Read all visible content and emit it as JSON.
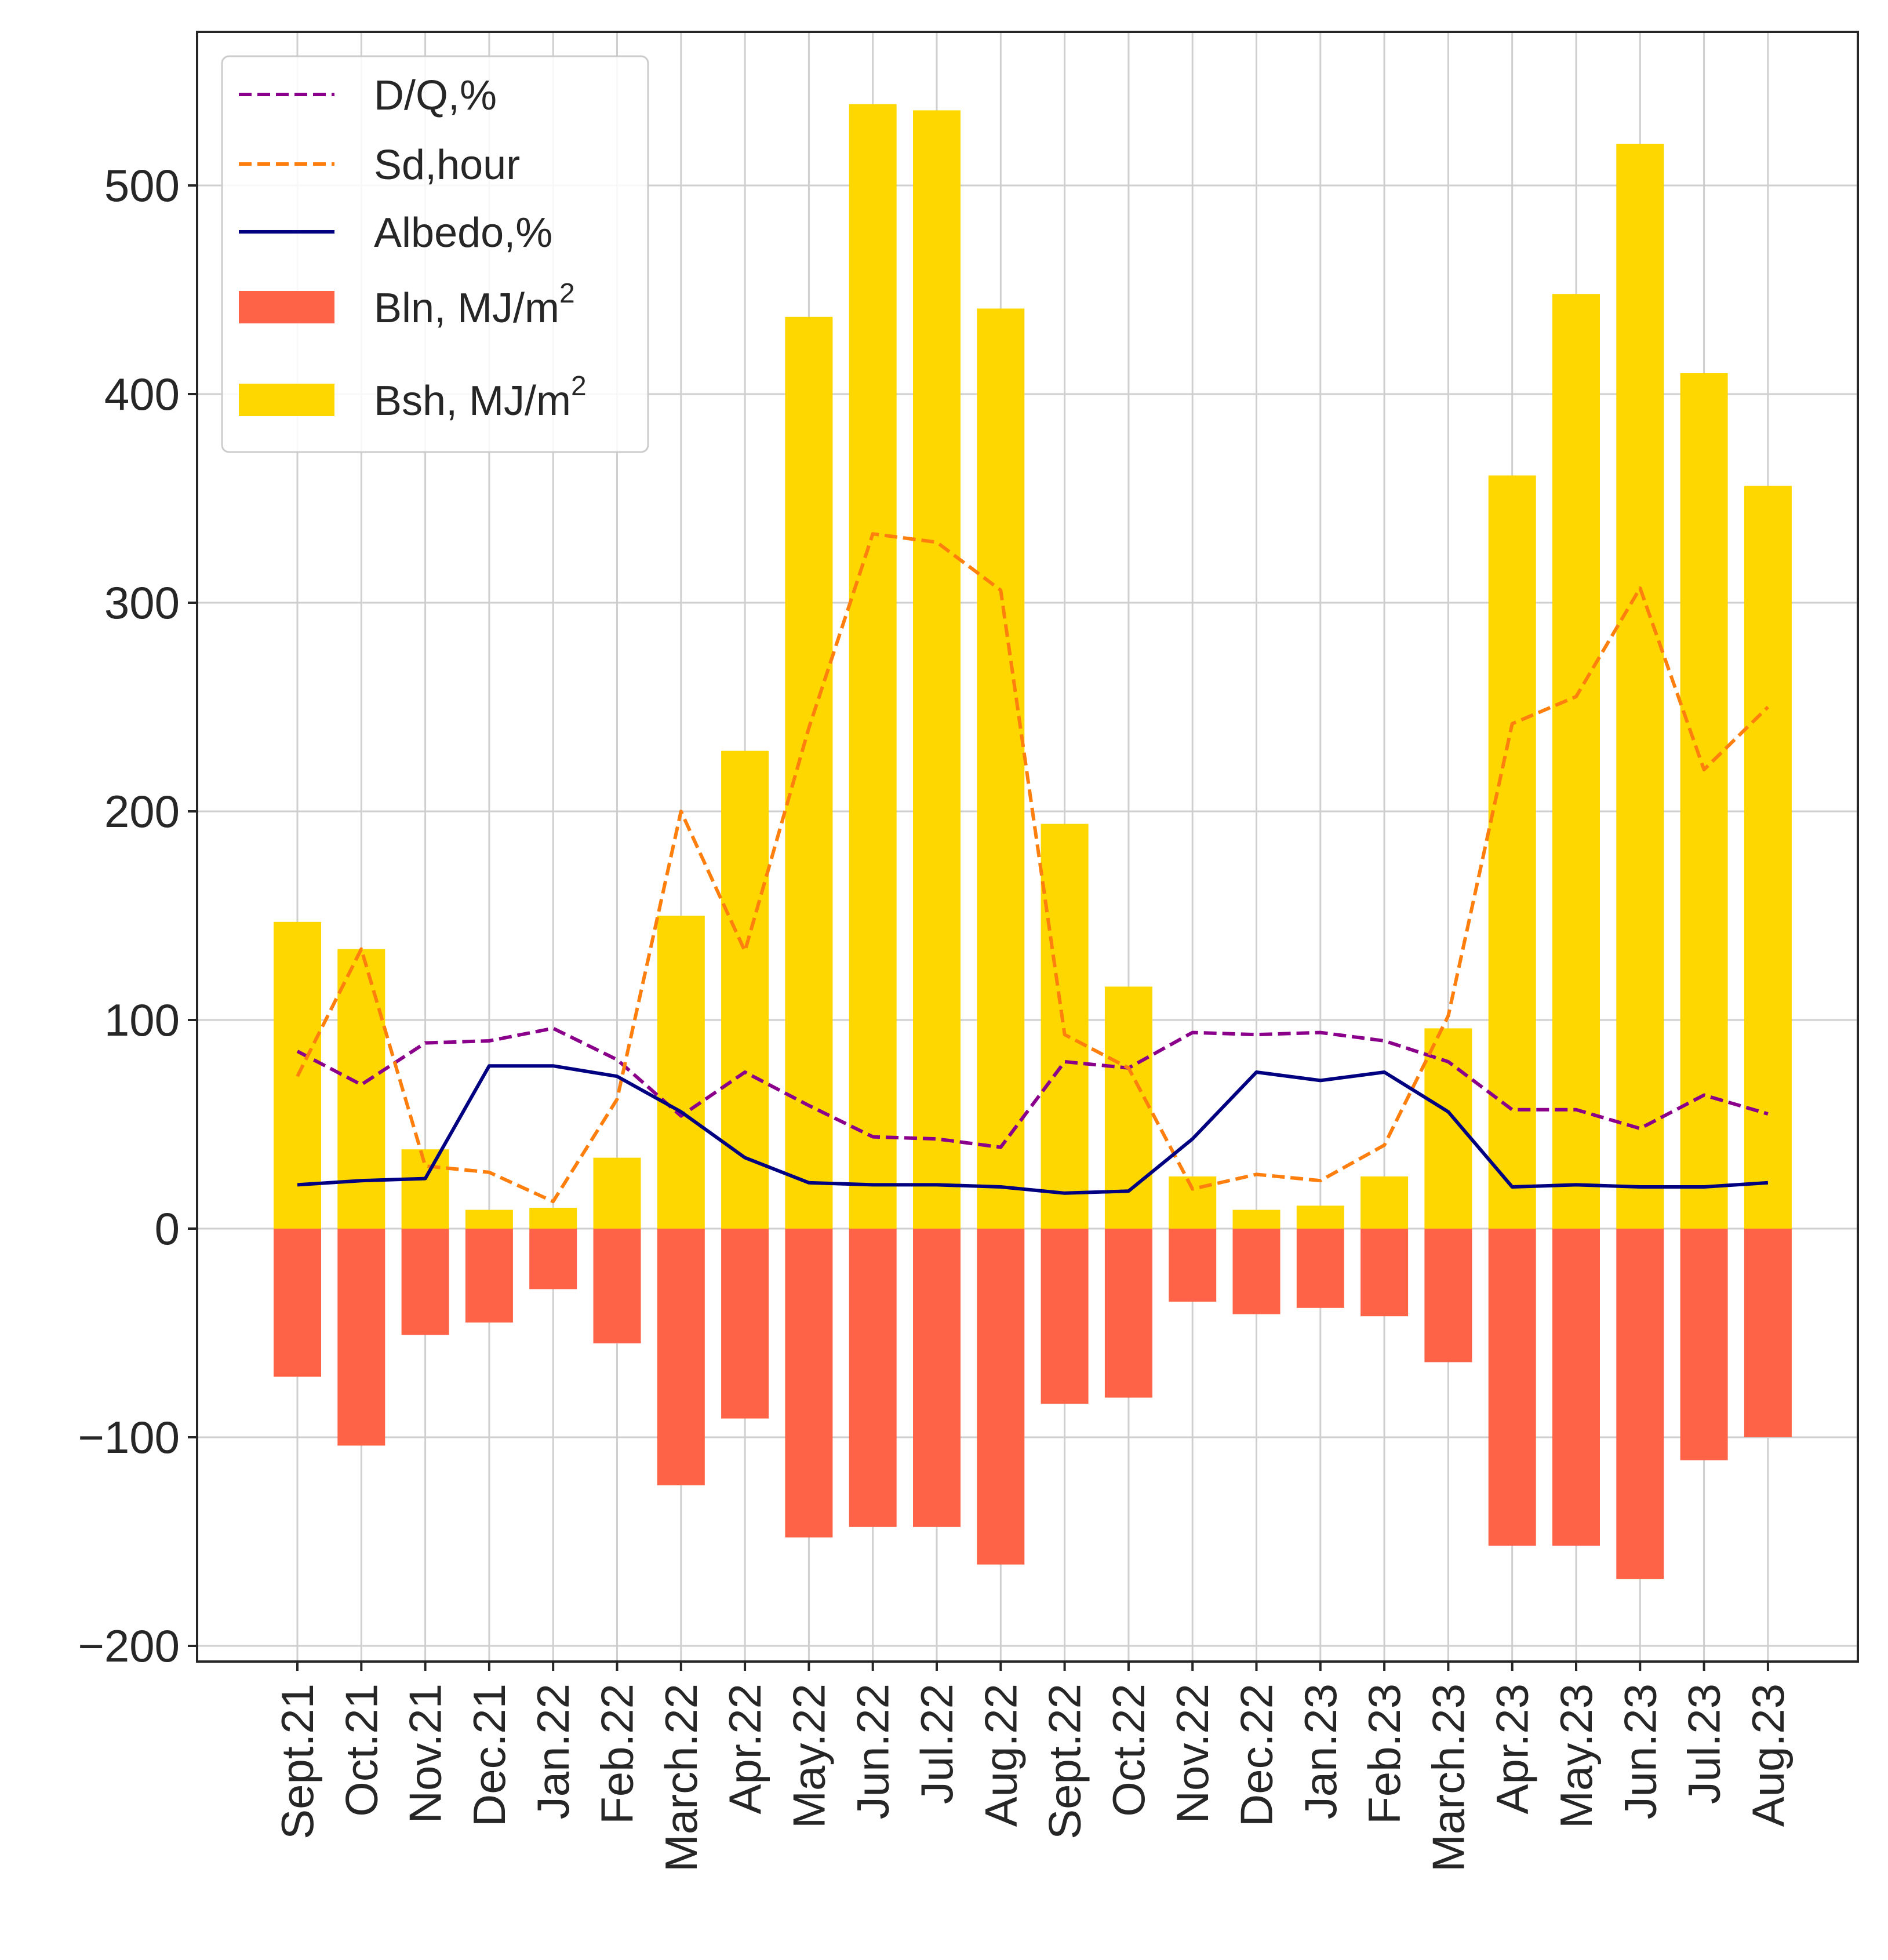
{
  "chart_data": {
    "type": "bar",
    "title": "",
    "xlabel": "",
    "ylabel": "",
    "ylim": [
      -205,
      575
    ],
    "yticks": [
      -200,
      -100,
      0,
      100,
      200,
      300,
      400,
      500
    ],
    "ytick_labels": [
      "−200",
      "−100",
      "0",
      "100",
      "200",
      "300",
      "400",
      "500"
    ],
    "grid": true,
    "legend_position": "top-left",
    "categories": [
      "Sept.21",
      "Oct.21",
      "Nov.21",
      "Dec.21",
      "Jan.22",
      "Feb.22",
      "March.22",
      "Apr.22",
      "May.22",
      "Jun.22",
      "Jul.22",
      "Aug.22",
      "Sept.22",
      "Oct.22",
      "Nov.22",
      "Dec.22",
      "Jan.23",
      "Feb.23",
      "March.23",
      "Apr.23",
      "May.23",
      "Jun.23",
      "Jul.23",
      "Aug.23"
    ],
    "series": [
      {
        "name": "D/Q,%",
        "kind": "line",
        "style": "dashed",
        "color": "#8B008B",
        "values": [
          85,
          69,
          89,
          90,
          96,
          81,
          54,
          75,
          59,
          44,
          43,
          39,
          80,
          77,
          94,
          93,
          94,
          90,
          80,
          57,
          57,
          48,
          64,
          55
        ]
      },
      {
        "name": "Sd,hour",
        "kind": "line",
        "style": "dashed",
        "color": "#FF7F0E",
        "values": [
          73,
          134,
          30,
          27,
          13,
          62,
          200,
          133,
          240,
          333,
          329,
          306,
          93,
          77,
          19,
          26,
          23,
          40,
          102,
          242,
          255,
          307,
          220,
          250
        ]
      },
      {
        "name": "Albedo,%",
        "kind": "line",
        "style": "solid",
        "color": "#000080",
        "values": [
          21,
          23,
          24,
          78,
          78,
          73,
          56,
          34,
          22,
          21,
          21,
          20,
          17,
          18,
          43,
          75,
          71,
          75,
          56,
          20,
          21,
          20,
          20,
          22
        ]
      },
      {
        "name": "Bln, MJ/m",
        "superscript": "2",
        "kind": "bar",
        "color": "#FF6347",
        "values": [
          -71,
          -104,
          -51,
          -45,
          -29,
          -55,
          -123,
          -91,
          -148,
          -143,
          -143,
          -161,
          -84,
          -81,
          -35,
          -41,
          -38,
          -42,
          -64,
          -152,
          -152,
          -168,
          -111,
          -100
        ]
      },
      {
        "name": "Bsh, MJ/m",
        "superscript": "2",
        "kind": "bar",
        "color": "#FFD700",
        "values": [
          147,
          134,
          38,
          9,
          10,
          34,
          150,
          229,
          437,
          539,
          536,
          441,
          194,
          116,
          25,
          9,
          11,
          25,
          96,
          361,
          448,
          520,
          410,
          356
        ]
      }
    ]
  }
}
